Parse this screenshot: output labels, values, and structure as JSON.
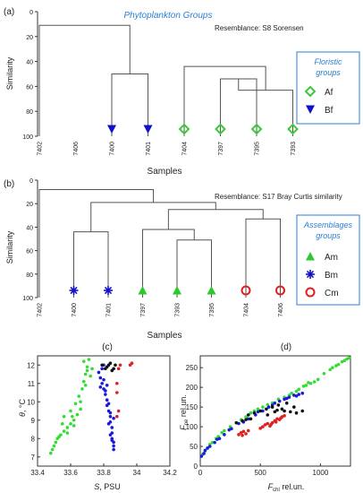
{
  "chart_data": [
    {
      "type": "dendrogram",
      "panel_label": "(a)",
      "title": "Phytoplankton Groups",
      "annotation": "Resemblance: S8 Sorensen",
      "ylabel": "Similarity",
      "xlabel": "Samples",
      "ylim": [
        0,
        100
      ],
      "yticks": [
        0,
        20,
        40,
        60,
        80,
        100
      ],
      "samples": [
        "7402",
        "7406",
        "7400",
        "7401",
        "7404",
        "7397",
        "7395",
        "7393"
      ],
      "sample_groups": [
        "",
        "",
        "Bf",
        "Bf",
        "Af",
        "Af",
        "Af",
        "Af"
      ],
      "merges": [
        {
          "a": "7397",
          "b": "7395",
          "similarity": 54
        },
        {
          "a": "(7397,7395)",
          "b": "7393",
          "similarity": 63
        },
        {
          "a": "7404",
          "b": "(7397,7395,7393)",
          "similarity": 44
        },
        {
          "a": "(7404,7397,7395,7393)",
          "b": "(7400,7401)",
          "similarity": 38
        },
        {
          "a": "7400",
          "b": "7401",
          "similarity": 50
        },
        {
          "a": "7406",
          "b": "(7400,7401,7404,7397,7395,7393)",
          "similarity": 20
        },
        {
          "a": "7402",
          "b": "rest",
          "similarity": 11
        }
      ],
      "legend_title": "Floristic groups",
      "legend": [
        {
          "label": "Af",
          "marker": "diamond-open",
          "color": "#3cc83c"
        },
        {
          "label": "Bf",
          "marker": "triangle-down",
          "color": "#1010c8"
        }
      ]
    },
    {
      "type": "dendrogram",
      "panel_label": "(b)",
      "annotation": "Resemblance: S17 Bray Curtis similarity",
      "ylabel": "Similarity",
      "xlabel": "Samples",
      "ylim": [
        0,
        100
      ],
      "yticks": [
        0,
        20,
        40,
        60,
        80,
        100
      ],
      "samples": [
        "7402",
        "7400",
        "7401",
        "7397",
        "7393",
        "7395",
        "7404",
        "7406"
      ],
      "sample_groups": [
        "",
        "Bm",
        "Bm",
        "Am",
        "Am",
        "Am",
        "Cm",
        "Cm"
      ],
      "merges": [
        {
          "a": "7393",
          "b": "7395",
          "similarity": 51
        },
        {
          "a": "7397",
          "b": "(7393,7395)",
          "similarity": 42
        },
        {
          "a": "7404",
          "b": "7406",
          "similarity": 33
        },
        {
          "a": "(7397,7393,7395)",
          "b": "(7404,7406)",
          "similarity": 25
        },
        {
          "a": "7400",
          "b": "7401",
          "similarity": 44
        },
        {
          "a": "(7400,7401)",
          "b": "(7397,7393,7395,7404,7406)",
          "similarity": 19
        },
        {
          "a": "7402",
          "b": "rest",
          "similarity": 8
        }
      ],
      "legend_title": "Assemblages groups",
      "legend": [
        {
          "label": "Am",
          "marker": "triangle-up",
          "color": "#2cc82c"
        },
        {
          "label": "Bm",
          "marker": "asterisk",
          "color": "#1010c8"
        },
        {
          "label": "Cm",
          "marker": "circle-open",
          "color": "#e02020"
        }
      ]
    },
    {
      "type": "scatter",
      "panel_label": "(c)",
      "xlabel_italic": "S",
      "xlabel_rest": ", PSU",
      "ylabel_italic": "θ",
      "ylabel_rest": ", °C",
      "xlim": [
        33.4,
        34.2
      ],
      "ylim": [
        6.5,
        12.5
      ],
      "xticks": [
        "33.4",
        "33.6",
        "33.8",
        "34",
        "34.2"
      ],
      "yticks": [
        "7",
        "8",
        "9",
        "10",
        "11",
        "12"
      ],
      "series": [
        {
          "color": "#33dd33",
          "points": [
            [
              33.48,
              7.2
            ],
            [
              33.49,
              7.4
            ],
            [
              33.5,
              7.6
            ],
            [
              33.51,
              7.8
            ],
            [
              33.52,
              8.0
            ],
            [
              33.54,
              8.2
            ],
            [
              33.56,
              8.4
            ],
            [
              33.58,
              8.6
            ],
            [
              33.6,
              8.8
            ],
            [
              33.62,
              9.0
            ],
            [
              33.64,
              9.3
            ],
            [
              33.66,
              9.6
            ],
            [
              33.55,
              8.8
            ],
            [
              33.56,
              9.2
            ],
            [
              33.6,
              9.5
            ],
            [
              33.63,
              9.9
            ],
            [
              33.65,
              10.3
            ],
            [
              33.67,
              10.7
            ],
            [
              33.68,
              11.1
            ],
            [
              33.69,
              11.5
            ],
            [
              33.7,
              11.9
            ],
            [
              33.71,
              12.3
            ],
            [
              33.68,
              12.2
            ],
            [
              33.7,
              11.7
            ],
            [
              33.72,
              11.4
            ],
            [
              33.73,
              11.8
            ],
            [
              33.69,
              10.9
            ],
            [
              33.66,
              10.0
            ],
            [
              33.61,
              9.2
            ],
            [
              33.53,
              8.1
            ],
            [
              33.58,
              8.3
            ],
            [
              33.62,
              8.7
            ]
          ]
        },
        {
          "color": "#1a1add",
          "points": [
            [
              33.77,
              11.6
            ],
            [
              33.78,
              11.3
            ],
            [
              33.79,
              11.0
            ],
            [
              33.8,
              10.7
            ],
            [
              33.81,
              10.4
            ],
            [
              33.82,
              10.1
            ],
            [
              33.82,
              9.8
            ],
            [
              33.83,
              9.5
            ],
            [
              33.84,
              9.2
            ],
            [
              33.84,
              8.9
            ],
            [
              33.85,
              8.6
            ],
            [
              33.85,
              8.3
            ],
            [
              33.85,
              8.0
            ],
            [
              33.86,
              7.8
            ],
            [
              33.86,
              7.6
            ],
            [
              33.86,
              7.4
            ],
            [
              33.8,
              11.2
            ],
            [
              33.79,
              11.8
            ],
            [
              33.8,
              12.0
            ],
            [
              33.81,
              10.6
            ],
            [
              33.83,
              9.9
            ],
            [
              33.84,
              9.4
            ],
            [
              33.83,
              8.8
            ],
            [
              33.84,
              8.2
            ],
            [
              33.85,
              7.9
            ],
            [
              33.86,
              9.1
            ],
            [
              33.82,
              10.9
            ],
            [
              33.78,
              10.8
            ]
          ]
        },
        {
          "color": "#111111",
          "points": [
            [
              33.79,
              12.0
            ],
            [
              33.82,
              11.9
            ],
            [
              33.84,
              12.1
            ],
            [
              33.86,
              11.8
            ],
            [
              33.87,
              12.0
            ],
            [
              33.85,
              11.7
            ],
            [
              33.83,
              12.0
            ],
            [
              33.81,
              11.8
            ]
          ]
        },
        {
          "color": "#e02020",
          "points": [
            [
              33.88,
              9.2
            ],
            [
              33.89,
              9.5
            ],
            [
              33.88,
              11.0
            ],
            [
              33.89,
              11.8
            ],
            [
              33.9,
              12.0
            ],
            [
              33.96,
              12.0
            ],
            [
              33.97,
              12.1
            ],
            [
              33.88,
              10.5
            ]
          ]
        }
      ]
    },
    {
      "type": "scatter",
      "panel_label": "(d)",
      "xlabel_italic": "F",
      "xlabel_sub": "chl",
      "xlabel_rest": " rel.un.",
      "ylabel_italic": "F",
      "ylabel_sub": "pe",
      "ylabel_rest": " rel.un.",
      "xlim": [
        0,
        1250
      ],
      "ylim": [
        0,
        280
      ],
      "xticks": [
        "0",
        "500",
        "1000"
      ],
      "yticks": [
        "0",
        "50",
        "100",
        "150",
        "200",
        "250"
      ],
      "series": [
        {
          "color": "#33dd33",
          "points": [
            [
              20,
              30
            ],
            [
              60,
              45
            ],
            [
              100,
              60
            ],
            [
              150,
              75
            ],
            [
              200,
              90
            ],
            [
              300,
              110
            ],
            [
              380,
              125
            ],
            [
              450,
              140
            ],
            [
              520,
              150
            ],
            [
              600,
              160
            ],
            [
              650,
              170
            ],
            [
              700,
              175
            ],
            [
              760,
              185
            ],
            [
              820,
              195
            ],
            [
              880,
              205
            ],
            [
              920,
              210
            ],
            [
              980,
              220
            ],
            [
              1030,
              235
            ],
            [
              1080,
              245
            ],
            [
              1130,
              255
            ],
            [
              1180,
              265
            ],
            [
              1220,
              272
            ],
            [
              1200,
              268
            ],
            [
              1150,
              258
            ],
            [
              950,
              214
            ],
            [
              900,
              212
            ],
            [
              860,
              203
            ],
            [
              800,
              190
            ],
            [
              740,
              180
            ],
            [
              560,
              156
            ],
            [
              480,
              145
            ],
            [
              420,
              135
            ],
            [
              340,
              118
            ],
            [
              250,
              100
            ],
            [
              180,
              85
            ],
            [
              130,
              70
            ],
            [
              80,
              55
            ],
            [
              40,
              38
            ],
            [
              1240,
              275
            ],
            [
              1100,
              250
            ]
          ]
        },
        {
          "color": "#1a1add",
          "points": [
            [
              10,
              25
            ],
            [
              40,
              40
            ],
            [
              80,
              50
            ],
            [
              120,
              60
            ],
            [
              160,
              70
            ],
            [
              200,
              80
            ],
            [
              260,
              95
            ],
            [
              320,
              108
            ],
            [
              400,
              120
            ],
            [
              460,
              130
            ],
            [
              520,
              140
            ],
            [
              570,
              150
            ],
            [
              620,
              160
            ],
            [
              660,
              165
            ],
            [
              700,
              170
            ],
            [
              740,
              175
            ],
            [
              780,
              180
            ],
            [
              820,
              182
            ],
            [
              850,
              185
            ],
            [
              600,
              155
            ],
            [
              480,
              138
            ],
            [
              360,
              112
            ],
            [
              240,
              92
            ],
            [
              140,
              68
            ],
            [
              60,
              46
            ],
            [
              30,
              32
            ],
            [
              720,
              172
            ],
            [
              800,
              178
            ]
          ]
        },
        {
          "color": "#111111",
          "points": [
            [
              300,
              110
            ],
            [
              350,
              115
            ],
            [
              400,
              130
            ],
            [
              450,
              135
            ],
            [
              500,
              140
            ],
            [
              550,
              145
            ],
            [
              600,
              150
            ],
            [
              650,
              155
            ],
            [
              700,
              140
            ],
            [
              750,
              138
            ],
            [
              800,
              135
            ],
            [
              850,
              140
            ],
            [
              560,
              130
            ],
            [
              620,
              138
            ],
            [
              680,
              145
            ],
            [
              420,
              120
            ],
            [
              380,
              118
            ],
            [
              780,
              150
            ],
            [
              720,
              160
            ],
            [
              640,
              142
            ]
          ]
        },
        {
          "color": "#e02020",
          "points": [
            [
              320,
              80
            ],
            [
              340,
              85
            ],
            [
              360,
              88
            ],
            [
              380,
              82
            ],
            [
              400,
              90
            ],
            [
              520,
              100
            ],
            [
              540,
              105
            ],
            [
              560,
              108
            ],
            [
              580,
              102
            ],
            [
              600,
              110
            ],
            [
              620,
              115
            ],
            [
              640,
              120
            ],
            [
              660,
              118
            ],
            [
              680,
              125
            ],
            [
              700,
              128
            ],
            [
              500,
              96
            ],
            [
              350,
              78
            ],
            [
              590,
              106
            ],
            [
              630,
              112
            ],
            [
              670,
              122
            ]
          ]
        }
      ]
    }
  ]
}
